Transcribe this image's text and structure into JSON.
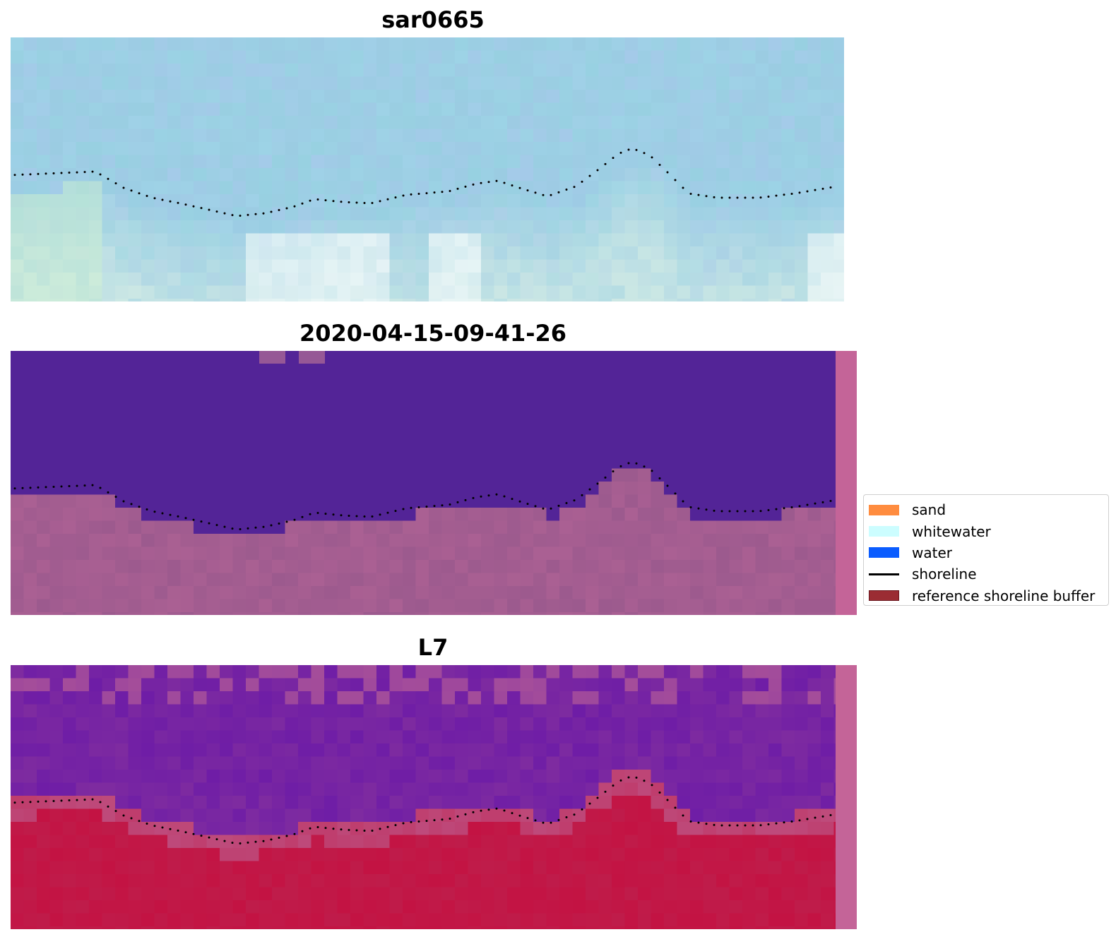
{
  "panels": [
    {
      "title": "sar0665",
      "image": "sar-composite-image"
    },
    {
      "title": "2020-04-15-09-41-26",
      "image": "classified-image"
    },
    {
      "title": "L7",
      "image": "landsat-index-image"
    }
  ],
  "legend": {
    "items": [
      {
        "label": "sand",
        "color": "#ff8c3f",
        "kind": "patch"
      },
      {
        "label": "whitewater",
        "color": "#ccfdff",
        "kind": "patch"
      },
      {
        "label": "water",
        "color": "#0a5cff",
        "kind": "patch"
      },
      {
        "label": "shoreline",
        "color": "#000000",
        "kind": "line"
      },
      {
        "label": "reference shoreline buffer",
        "color": "#9b2c33",
        "kind": "patch"
      }
    ]
  },
  "colors": {
    "sar_sky": "#9dd3e6",
    "water_class": "#532497",
    "land_overlay": "#9c5a8e",
    "index_water": "#7e2ba0",
    "index_land": "#bf1c4a"
  }
}
